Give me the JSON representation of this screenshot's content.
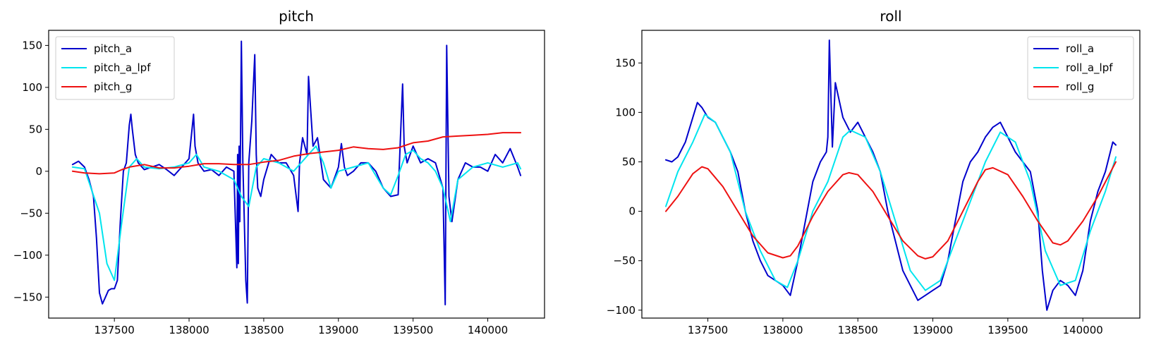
{
  "chart_data": [
    {
      "type": "line",
      "title": "pitch",
      "xlabel": "",
      "ylabel": "",
      "xlim": [
        137060,
        140380
      ],
      "ylim": [
        -175,
        168
      ],
      "xticks": [
        137500,
        138000,
        138500,
        139000,
        139500,
        140000
      ],
      "yticks": [
        -150,
        -100,
        -50,
        0,
        50,
        100,
        150
      ],
      "grid": false,
      "legend_position": "top-left",
      "series": [
        {
          "name": "pitch_a",
          "color": "#0000cc",
          "x": [
            137220,
            137260,
            137300,
            137330,
            137360,
            137380,
            137400,
            137420,
            137440,
            137460,
            137480,
            137500,
            137520,
            137540,
            137560,
            137580,
            137600,
            137610,
            137620,
            137640,
            137660,
            137700,
            137750,
            137800,
            137850,
            137900,
            137950,
            138000,
            138030,
            138040,
            138060,
            138100,
            138150,
            138200,
            138250,
            138300,
            138320,
            138325,
            138330,
            138335,
            138340,
            138350,
            138360,
            138380,
            138390,
            138400,
            138420,
            138440,
            138450,
            138460,
            138480,
            138500,
            138550,
            138600,
            138650,
            138700,
            138730,
            138740,
            138760,
            138790,
            138800,
            138830,
            138860,
            138900,
            138950,
            139000,
            139020,
            139040,
            139060,
            139100,
            139150,
            139200,
            139250,
            139300,
            139350,
            139400,
            139430,
            139440,
            139460,
            139500,
            139550,
            139600,
            139650,
            139700,
            139715,
            139725,
            139740,
            139760,
            139800,
            139850,
            139900,
            139950,
            140000,
            140050,
            140100,
            140150,
            140200,
            140220
          ],
          "y": [
            8,
            12,
            5,
            -10,
            -30,
            -80,
            -145,
            -158,
            -150,
            -142,
            -140,
            -140,
            -130,
            -60,
            0,
            10,
            55,
            68,
            50,
            20,
            10,
            2,
            5,
            8,
            2,
            -5,
            5,
            15,
            68,
            30,
            10,
            0,
            2,
            -5,
            5,
            0,
            -115,
            20,
            -110,
            30,
            -60,
            155,
            10,
            -130,
            -157,
            10,
            60,
            139,
            20,
            -20,
            -30,
            -10,
            20,
            10,
            10,
            -5,
            -48,
            10,
            40,
            20,
            113,
            30,
            40,
            -10,
            -20,
            5,
            33,
            5,
            -5,
            0,
            10,
            10,
            0,
            -20,
            -30,
            -28,
            104,
            30,
            10,
            30,
            10,
            15,
            10,
            -20,
            -159,
            150,
            -30,
            -60,
            -10,
            10,
            5,
            5,
            0,
            20,
            10,
            27,
            5,
            -5
          ]
        },
        {
          "name": "pitch_a_lpf",
          "color": "#00e5ee",
          "x": [
            137220,
            137300,
            137400,
            137450,
            137500,
            137550,
            137600,
            137650,
            137700,
            137800,
            137900,
            138000,
            138050,
            138100,
            138200,
            138300,
            138350,
            138400,
            138450,
            138500,
            138600,
            138700,
            138800,
            138850,
            138900,
            138950,
            139000,
            139100,
            139200,
            139300,
            139350,
            139400,
            139450,
            139500,
            139550,
            139600,
            139650,
            139700,
            139750,
            139800,
            139900,
            140000,
            140100,
            140200,
            140220
          ],
          "y": [
            5,
            3,
            -50,
            -110,
            -130,
            -60,
            5,
            15,
            5,
            3,
            5,
            10,
            20,
            5,
            0,
            -10,
            -30,
            -42,
            5,
            15,
            10,
            0,
            20,
            30,
            10,
            -20,
            0,
            5,
            10,
            -20,
            -28,
            -5,
            20,
            25,
            15,
            10,
            0,
            -20,
            -60,
            -10,
            5,
            10,
            5,
            10,
            3
          ]
        },
        {
          "name": "pitch_g",
          "color": "#ee1111",
          "x": [
            137220,
            137300,
            137400,
            137500,
            137550,
            137600,
            137700,
            137800,
            137900,
            138000,
            138100,
            138200,
            138300,
            138400,
            138500,
            138600,
            138700,
            138800,
            138900,
            139000,
            139100,
            139200,
            139300,
            139400,
            139500,
            139600,
            139700,
            139800,
            139900,
            140000,
            140100,
            140200,
            140220
          ],
          "y": [
            0,
            -2,
            -3,
            -2,
            2,
            5,
            8,
            4,
            4,
            6,
            9,
            9,
            8,
            8,
            11,
            13,
            18,
            21,
            23,
            25,
            29,
            27,
            26,
            28,
            34,
            36,
            41,
            42,
            43,
            44,
            46,
            46,
            46
          ]
        }
      ]
    },
    {
      "type": "line",
      "title": "roll",
      "xlabel": "",
      "ylabel": "",
      "xlim": [
        137060,
        140380
      ],
      "ylim": [
        -108,
        183
      ],
      "xticks": [
        137500,
        138000,
        138500,
        139000,
        139500,
        140000
      ],
      "yticks": [
        -100,
        -50,
        0,
        50,
        100,
        150
      ],
      "grid": false,
      "legend_position": "top-right",
      "series": [
        {
          "name": "roll_a",
          "color": "#0000cc",
          "x": [
            137220,
            137260,
            137300,
            137350,
            137400,
            137430,
            137460,
            137500,
            137550,
            137600,
            137650,
            137700,
            137750,
            137800,
            137850,
            137900,
            137950,
            138000,
            138050,
            138100,
            138150,
            138200,
            138250,
            138290,
            138300,
            138310,
            138330,
            138350,
            138400,
            138450,
            138500,
            138550,
            138600,
            138650,
            138700,
            138750,
            138800,
            138850,
            138900,
            138950,
            139000,
            139050,
            139100,
            139150,
            139200,
            139250,
            139300,
            139350,
            139400,
            139450,
            139500,
            139550,
            139600,
            139650,
            139700,
            139730,
            139760,
            139800,
            139850,
            139900,
            139950,
            140000,
            140050,
            140100,
            140150,
            140200,
            140220
          ],
          "y": [
            52,
            50,
            55,
            70,
            95,
            110,
            105,
            95,
            90,
            75,
            60,
            40,
            0,
            -30,
            -50,
            -65,
            -70,
            -75,
            -85,
            -50,
            -10,
            30,
            50,
            60,
            75,
            173,
            65,
            130,
            95,
            80,
            90,
            75,
            60,
            40,
            0,
            -30,
            -60,
            -75,
            -90,
            -85,
            -80,
            -75,
            -50,
            -10,
            30,
            50,
            60,
            75,
            85,
            90,
            75,
            60,
            50,
            40,
            0,
            -60,
            -100,
            -80,
            -70,
            -75,
            -85,
            -60,
            -10,
            20,
            40,
            70,
            67
          ]
        },
        {
          "name": "roll_a_lpf",
          "color": "#00e5ee",
          "x": [
            137220,
            137300,
            137400,
            137480,
            137550,
            137650,
            137750,
            137850,
            137950,
            138030,
            138100,
            138200,
            138300,
            138400,
            138450,
            138550,
            138650,
            138750,
            138850,
            138950,
            139050,
            139150,
            139250,
            139350,
            139450,
            139550,
            139650,
            139750,
            139850,
            139950,
            140050,
            140150,
            140220
          ],
          "y": [
            5,
            40,
            70,
            98,
            90,
            60,
            0,
            -40,
            -70,
            -77,
            -50,
            0,
            30,
            75,
            82,
            75,
            40,
            -10,
            -60,
            -80,
            -70,
            -30,
            10,
            50,
            80,
            70,
            30,
            -40,
            -75,
            -70,
            -20,
            20,
            55
          ]
        },
        {
          "name": "roll_g",
          "color": "#ee1111",
          "x": [
            137220,
            137300,
            137400,
            137460,
            137500,
            137600,
            137700,
            137800,
            137900,
            138000,
            138050,
            138100,
            138200,
            138300,
            138400,
            138440,
            138500,
            138600,
            138700,
            138800,
            138900,
            138950,
            139000,
            139100,
            139200,
            139300,
            139350,
            139400,
            139500,
            139600,
            139700,
            139800,
            139850,
            139900,
            140000,
            140100,
            140220
          ],
          "y": [
            0,
            15,
            38,
            45,
            43,
            25,
            0,
            -25,
            -42,
            -47,
            -45,
            -35,
            -5,
            20,
            37,
            39,
            37,
            20,
            -5,
            -30,
            -45,
            -48,
            -46,
            -30,
            0,
            30,
            42,
            44,
            37,
            15,
            -10,
            -32,
            -34,
            -30,
            -10,
            15,
            50
          ]
        }
      ]
    }
  ]
}
